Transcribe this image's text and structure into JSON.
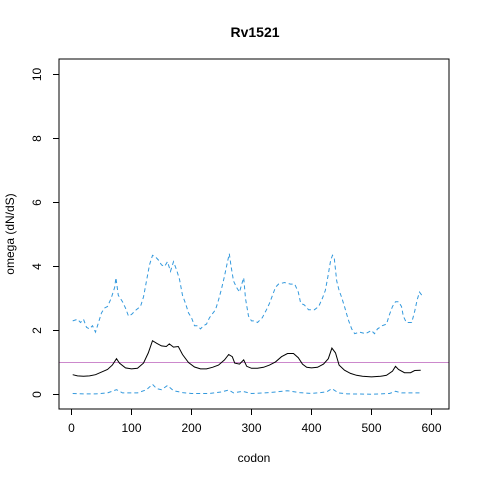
{
  "chart_data": {
    "type": "line",
    "title": "Rv1521",
    "xlabel": "codon",
    "ylabel": "omega (dN/dS)",
    "xlim": [
      0,
      600
    ],
    "ylim": [
      0,
      10
    ],
    "x_ticks": [
      0,
      100,
      200,
      300,
      400,
      500,
      600
    ],
    "y_ticks": [
      0,
      2,
      4,
      6,
      8,
      10
    ],
    "x_tick_labels": [
      "0",
      "100",
      "200",
      "300",
      "400",
      "500",
      "600"
    ],
    "y_tick_labels": [
      "0",
      "2",
      "4",
      "6",
      "8",
      "10"
    ],
    "reference_line": {
      "y": 1,
      "color": "#cc88cc"
    },
    "grid": false,
    "legend": "none",
    "series": [
      {
        "role": "estimate",
        "color": "#000000",
        "style": "solid",
        "points": [
          [
            2,
            0.62
          ],
          [
            10,
            0.58
          ],
          [
            20,
            0.57
          ],
          [
            30,
            0.58
          ],
          [
            40,
            0.62
          ],
          [
            50,
            0.7
          ],
          [
            60,
            0.78
          ],
          [
            68,
            0.92
          ],
          [
            75,
            1.12
          ],
          [
            80,
            0.98
          ],
          [
            90,
            0.83
          ],
          [
            100,
            0.8
          ],
          [
            110,
            0.82
          ],
          [
            120,
            0.98
          ],
          [
            128,
            1.3
          ],
          [
            135,
            1.68
          ],
          [
            142,
            1.6
          ],
          [
            150,
            1.52
          ],
          [
            158,
            1.5
          ],
          [
            163,
            1.58
          ],
          [
            170,
            1.48
          ],
          [
            178,
            1.5
          ],
          [
            185,
            1.25
          ],
          [
            195,
            1.0
          ],
          [
            205,
            0.86
          ],
          [
            215,
            0.8
          ],
          [
            225,
            0.8
          ],
          [
            235,
            0.85
          ],
          [
            245,
            0.92
          ],
          [
            255,
            1.08
          ],
          [
            262,
            1.25
          ],
          [
            268,
            1.18
          ],
          [
            272,
            0.98
          ],
          [
            280,
            0.95
          ],
          [
            287,
            1.08
          ],
          [
            292,
            0.88
          ],
          [
            300,
            0.82
          ],
          [
            310,
            0.82
          ],
          [
            320,
            0.85
          ],
          [
            330,
            0.92
          ],
          [
            340,
            1.02
          ],
          [
            350,
            1.18
          ],
          [
            360,
            1.28
          ],
          [
            370,
            1.28
          ],
          [
            378,
            1.15
          ],
          [
            385,
            0.95
          ],
          [
            392,
            0.85
          ],
          [
            400,
            0.83
          ],
          [
            410,
            0.85
          ],
          [
            420,
            0.95
          ],
          [
            428,
            1.12
          ],
          [
            434,
            1.45
          ],
          [
            440,
            1.3
          ],
          [
            446,
            0.92
          ],
          [
            455,
            0.76
          ],
          [
            465,
            0.66
          ],
          [
            475,
            0.6
          ],
          [
            485,
            0.57
          ],
          [
            500,
            0.55
          ],
          [
            515,
            0.57
          ],
          [
            525,
            0.6
          ],
          [
            535,
            0.73
          ],
          [
            540,
            0.88
          ],
          [
            545,
            0.78
          ],
          [
            555,
            0.68
          ],
          [
            565,
            0.68
          ],
          [
            572,
            0.75
          ],
          [
            582,
            0.76
          ]
        ]
      },
      {
        "role": "upper bound",
        "color": "#3399dd",
        "style": "dashed",
        "points": [
          [
            2,
            2.3
          ],
          [
            10,
            2.35
          ],
          [
            15,
            2.25
          ],
          [
            20,
            2.35
          ],
          [
            25,
            2.1
          ],
          [
            30,
            2.05
          ],
          [
            35,
            2.15
          ],
          [
            40,
            1.95
          ],
          [
            45,
            2.25
          ],
          [
            50,
            2.55
          ],
          [
            55,
            2.7
          ],
          [
            60,
            2.75
          ],
          [
            66,
            3.0
          ],
          [
            72,
            3.35
          ],
          [
            74,
            3.65
          ],
          [
            78,
            3.1
          ],
          [
            85,
            2.9
          ],
          [
            90,
            2.7
          ],
          [
            95,
            2.45
          ],
          [
            100,
            2.5
          ],
          [
            108,
            2.65
          ],
          [
            115,
            2.75
          ],
          [
            120,
            3.05
          ],
          [
            125,
            3.55
          ],
          [
            130,
            4.05
          ],
          [
            135,
            4.35
          ],
          [
            140,
            4.3
          ],
          [
            145,
            4.2
          ],
          [
            150,
            4.05
          ],
          [
            155,
            4.0
          ],
          [
            160,
            4.15
          ],
          [
            165,
            3.85
          ],
          [
            170,
            4.15
          ],
          [
            175,
            3.9
          ],
          [
            180,
            3.6
          ],
          [
            185,
            3.1
          ],
          [
            190,
            2.85
          ],
          [
            195,
            2.55
          ],
          [
            200,
            2.4
          ],
          [
            205,
            2.15
          ],
          [
            210,
            2.15
          ],
          [
            215,
            2.05
          ],
          [
            220,
            2.15
          ],
          [
            225,
            2.2
          ],
          [
            230,
            2.4
          ],
          [
            240,
            2.65
          ],
          [
            245,
            2.95
          ],
          [
            250,
            3.3
          ],
          [
            255,
            3.7
          ],
          [
            260,
            4.15
          ],
          [
            263,
            4.4
          ],
          [
            266,
            4.0
          ],
          [
            270,
            3.55
          ],
          [
            275,
            3.35
          ],
          [
            280,
            3.2
          ],
          [
            283,
            3.4
          ],
          [
            287,
            3.65
          ],
          [
            290,
            3.0
          ],
          [
            295,
            2.45
          ],
          [
            300,
            2.3
          ],
          [
            305,
            2.3
          ],
          [
            310,
            2.25
          ],
          [
            318,
            2.4
          ],
          [
            325,
            2.65
          ],
          [
            330,
            2.85
          ],
          [
            335,
            3.1
          ],
          [
            340,
            3.35
          ],
          [
            345,
            3.45
          ],
          [
            355,
            3.5
          ],
          [
            365,
            3.45
          ],
          [
            372,
            3.45
          ],
          [
            378,
            3.2
          ],
          [
            382,
            2.85
          ],
          [
            388,
            2.8
          ],
          [
            395,
            2.65
          ],
          [
            405,
            2.65
          ],
          [
            412,
            2.75
          ],
          [
            418,
            3.0
          ],
          [
            423,
            3.25
          ],
          [
            427,
            3.65
          ],
          [
            432,
            4.2
          ],
          [
            435,
            4.35
          ],
          [
            438,
            4.25
          ],
          [
            442,
            3.55
          ],
          [
            446,
            3.25
          ],
          [
            450,
            3.05
          ],
          [
            455,
            2.75
          ],
          [
            458,
            2.55
          ],
          [
            462,
            2.3
          ],
          [
            467,
            2.05
          ],
          [
            472,
            1.9
          ],
          [
            480,
            1.95
          ],
          [
            490,
            1.9
          ],
          [
            500,
            2.0
          ],
          [
            505,
            1.9
          ],
          [
            510,
            2.05
          ],
          [
            518,
            2.15
          ],
          [
            525,
            2.2
          ],
          [
            530,
            2.5
          ],
          [
            535,
            2.75
          ],
          [
            540,
            2.9
          ],
          [
            545,
            2.9
          ],
          [
            550,
            2.75
          ],
          [
            553,
            2.45
          ],
          [
            558,
            2.25
          ],
          [
            563,
            2.25
          ],
          [
            567,
            2.25
          ],
          [
            572,
            2.6
          ],
          [
            576,
            2.95
          ],
          [
            580,
            3.2
          ],
          [
            584,
            3.1
          ]
        ]
      },
      {
        "role": "lower bound",
        "color": "#3399dd",
        "style": "dashed",
        "points": [
          [
            2,
            0.03
          ],
          [
            20,
            0.02
          ],
          [
            40,
            0.02
          ],
          [
            60,
            0.05
          ],
          [
            75,
            0.15
          ],
          [
            85,
            0.05
          ],
          [
            110,
            0.05
          ],
          [
            125,
            0.15
          ],
          [
            135,
            0.32
          ],
          [
            142,
            0.18
          ],
          [
            150,
            0.15
          ],
          [
            160,
            0.28
          ],
          [
            170,
            0.12
          ],
          [
            185,
            0.06
          ],
          [
            200,
            0.03
          ],
          [
            230,
            0.03
          ],
          [
            250,
            0.08
          ],
          [
            262,
            0.14
          ],
          [
            270,
            0.05
          ],
          [
            285,
            0.1
          ],
          [
            300,
            0.03
          ],
          [
            330,
            0.06
          ],
          [
            360,
            0.12
          ],
          [
            380,
            0.06
          ],
          [
            400,
            0.03
          ],
          [
            425,
            0.08
          ],
          [
            434,
            0.18
          ],
          [
            445,
            0.05
          ],
          [
            460,
            0.02
          ],
          [
            500,
            0.01
          ],
          [
            530,
            0.03
          ],
          [
            540,
            0.1
          ],
          [
            550,
            0.05
          ],
          [
            570,
            0.05
          ],
          [
            584,
            0.05
          ]
        ]
      }
    ]
  }
}
